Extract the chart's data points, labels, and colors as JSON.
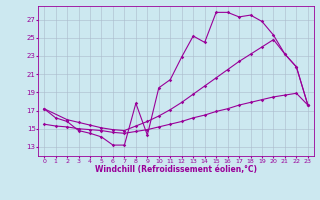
{
  "xlabel": "Windchill (Refroidissement éolien,°C)",
  "background_color": "#cce8f0",
  "line_color": "#990099",
  "grid_color": "#aabbcc",
  "xlim": [
    -0.5,
    23.5
  ],
  "ylim": [
    12.0,
    28.5
  ],
  "yticks": [
    13,
    15,
    17,
    19,
    21,
    23,
    25,
    27
  ],
  "xticks": [
    0,
    1,
    2,
    3,
    4,
    5,
    6,
    7,
    8,
    9,
    10,
    11,
    12,
    13,
    14,
    15,
    16,
    17,
    18,
    19,
    20,
    21,
    22,
    23
  ],
  "curve1_x": [
    0,
    1,
    2,
    3,
    4,
    5,
    6,
    7,
    8,
    9,
    10,
    11,
    12,
    13,
    14,
    15,
    16,
    17,
    18,
    19,
    20,
    21,
    22,
    23
  ],
  "curve1_y": [
    17.2,
    16.2,
    15.8,
    14.8,
    14.5,
    14.1,
    13.2,
    13.2,
    17.8,
    14.3,
    19.5,
    20.4,
    22.9,
    25.2,
    24.5,
    27.8,
    27.8,
    27.3,
    27.5,
    26.8,
    25.3,
    23.2,
    21.8,
    17.6
  ],
  "curve2_x": [
    0,
    2,
    3,
    4,
    5,
    6,
    7,
    8,
    9,
    10,
    11,
    12,
    13,
    14,
    15,
    16,
    17,
    18,
    19,
    20,
    21,
    22,
    23
  ],
  "curve2_y": [
    17.2,
    16.0,
    15.7,
    15.4,
    15.1,
    14.9,
    14.8,
    15.3,
    15.8,
    16.4,
    17.1,
    17.9,
    18.8,
    19.7,
    20.6,
    21.5,
    22.4,
    23.2,
    24.0,
    24.8,
    23.2,
    21.8,
    17.6
  ],
  "curve3_x": [
    0,
    1,
    2,
    3,
    4,
    5,
    6,
    7,
    8,
    9,
    10,
    11,
    12,
    13,
    14,
    15,
    16,
    17,
    18,
    19,
    20,
    21,
    22,
    23
  ],
  "curve3_y": [
    15.5,
    15.3,
    15.2,
    15.0,
    14.9,
    14.8,
    14.6,
    14.5,
    14.7,
    14.9,
    15.2,
    15.5,
    15.8,
    16.2,
    16.5,
    16.9,
    17.2,
    17.6,
    17.9,
    18.2,
    18.5,
    18.7,
    18.9,
    17.6
  ],
  "marker_size": 1.8,
  "line_width": 0.8,
  "tick_fontsize": 5.0,
  "xlabel_fontsize": 5.5
}
